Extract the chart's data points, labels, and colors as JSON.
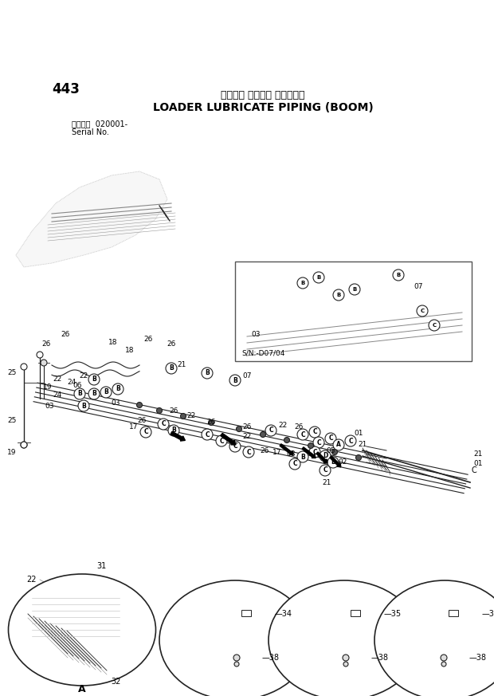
{
  "bg_color": "#ffffff",
  "fig_w": 6.2,
  "fig_h": 8.73,
  "dpi": 100,
  "page_num": "443",
  "title_jp": "ローダ゚ 給脂配管 （ブーム）",
  "title_en": "LOADER LUBRICATE PIPING (BOOM)",
  "serial1": "適用号機  020001-",
  "serial2": "Serial No.",
  "inset_sn": "S/N:-D07/04",
  "lc": "#222222",
  "tc": "#000000",
  "gray": "#888888",
  "lgray": "#aaaaaa"
}
